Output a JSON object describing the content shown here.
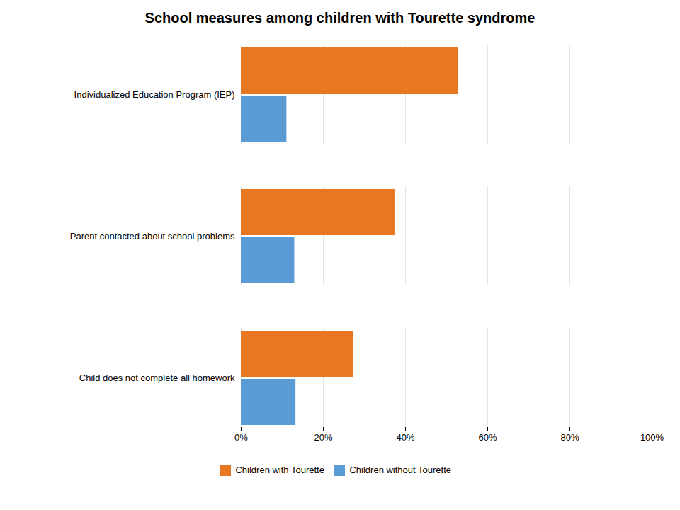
{
  "chart_data": {
    "type": "bar",
    "orientation": "horizontal",
    "title": "School measures among children with Tourette syndrome",
    "categories": [
      "Individualized Education Program (IEP)",
      "Parent contacted about school problems",
      "Child does not complete all homework"
    ],
    "series": [
      {
        "name": "Children with Tourette",
        "color": "#E87722",
        "values": [
          52.8,
          37.4,
          27.3
        ]
      },
      {
        "name": "Children without Tourette",
        "color": "#5B9BD5",
        "values": [
          11.1,
          13.0,
          13.3
        ]
      }
    ],
    "xlim": [
      0,
      100
    ],
    "xticks": [
      {
        "value": 0,
        "label": "0%"
      },
      {
        "value": 20,
        "label": "20%"
      },
      {
        "value": 40,
        "label": "40%"
      },
      {
        "value": 60,
        "label": "60%"
      },
      {
        "value": 80,
        "label": "80%"
      },
      {
        "value": 100,
        "label": "100%"
      }
    ],
    "grid": true,
    "legend": "bottom"
  }
}
